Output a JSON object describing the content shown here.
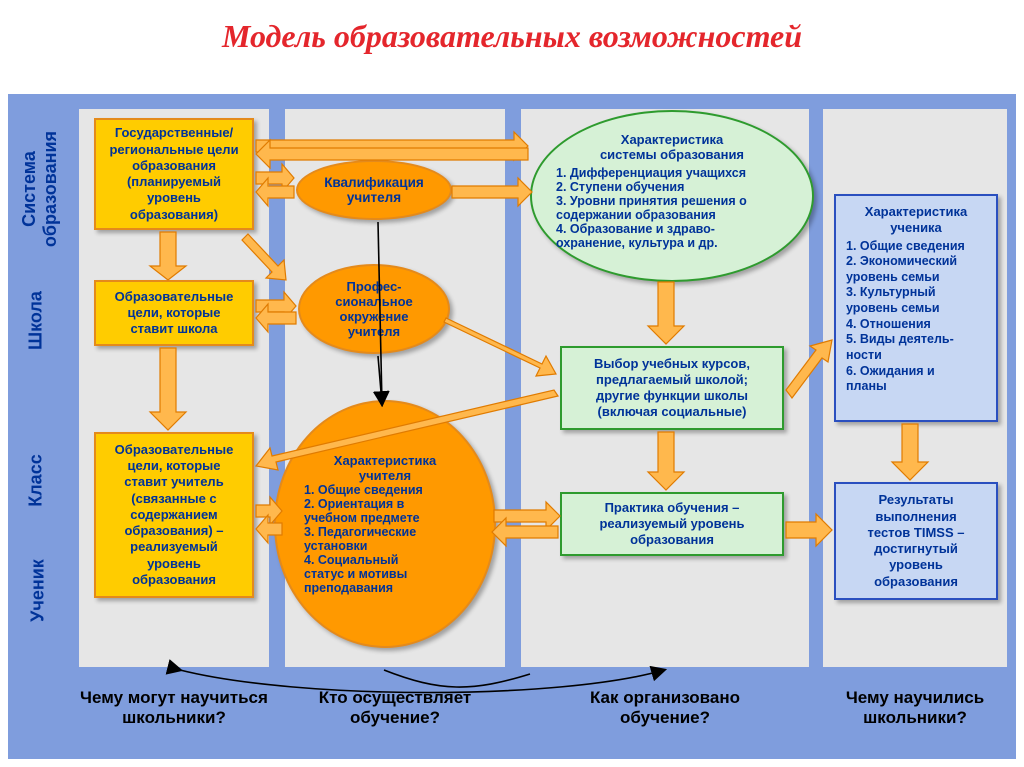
{
  "title": "Модель образовательных возможностей",
  "colors": {
    "title": "#e4262c",
    "bg_panel": "#7f9ddd",
    "inner_panel": "#e6e6e6",
    "yellow_fill": "#ffcc00",
    "yellow_border": "#e48a1b",
    "orange_fill": "#ff9900",
    "orange_border": "#e48a1b",
    "green_fill": "#d6f1d6",
    "green_border": "#2e9b2e",
    "blue_fill": "#c7d7f3",
    "blue_border": "#2a4fbf",
    "arrow_fill": "#ffb84d",
    "arrow_stroke": "#e07b00",
    "text": "#003399"
  },
  "row_labels": {
    "system": "Система\nобразования",
    "school": "Школа",
    "class": "Класс",
    "student": "Ученик"
  },
  "col1": {
    "box1": "Государственные/\nрегиональные цели\nобразования\n(планируемый\nуровень\nобразования)",
    "box2": "Образовательные\nцели, которые\nставит школа",
    "box3": "Образовательные\nцели, которые\nставит учитель\n(связанные с\nсодержанием\nобразования) –\nреализуемый\nуровень\nобразования"
  },
  "col2": {
    "el1": "Квалификация\nучителя",
    "el2": "Профес-\nсиональное\nокружение\nучителя",
    "el3_header": "Характеристика\nучителя",
    "el3_items": [
      "1. Общие сведения",
      "2. Ориентация в",
      "учебном предмете",
      "3. Педагогические",
      "установки",
      "4. Социальный",
      "статус и мотивы",
      "преподавания"
    ]
  },
  "col3": {
    "el1_header": "Характеристика\nсистемы образования",
    "el1_items": [
      "1. Дифференциация учащихся",
      "2. Ступени обучения",
      "3. Уровни принятия решения о",
      "    содержании образования",
      "4. Образование и здраво-",
      "    охранение, культура и др."
    ],
    "box2": "Выбор учебных курсов,\nпредлагаемый школой;\nдругие функции школы\n(включая социальные)",
    "box3": "Практика обучения –\nреализуемый уровень\nобразования"
  },
  "col4": {
    "box1_header": "Характеристика\nученика",
    "box1_items": [
      "1. Общие сведения",
      "2. Экономический",
      "    уровень семьи",
      "3. Культурный",
      "    уровень семьи",
      "4. Отношения",
      "5. Виды деятель-",
      "    ности",
      "6. Ожидания и",
      "    планы"
    ],
    "box2": "Результаты\nвыполнения\nтестов TIMSS –\nдостигнутый\nуровень\nобразования"
  },
  "footer": {
    "q1": "Чему могут научиться\nшкольники?",
    "q2": "Кто осуществляет\nобучение?",
    "q3": "Как организовано\nобучение?",
    "q4": "Чему научились\nшкольники?"
  },
  "arrow_style": {
    "fill": "#ffb84d",
    "stroke": "#e07b00",
    "stroke_width": 1.2
  }
}
